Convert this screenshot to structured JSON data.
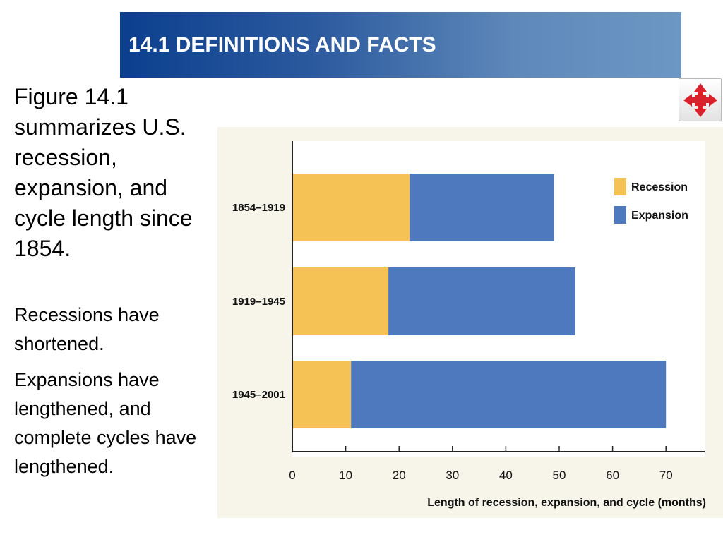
{
  "header": {
    "title": "14.1 DEFINITIONS AND FACTS"
  },
  "nav": {
    "icon": "move-arrows-icon",
    "color": "#d9212c"
  },
  "text": {
    "main": "Figure 14.1 summarizes U.S. recession, expansion, and cycle length since 1854.",
    "point1": "Recessions have shortened.",
    "point2": "Expansions have lengthened, and complete cycles have lengthened."
  },
  "chart_data": {
    "type": "bar",
    "orientation": "horizontal",
    "stacked": true,
    "categories": [
      "1854–1919",
      "1919–1945",
      "1945–2001"
    ],
    "series": [
      {
        "name": "Recession",
        "values": [
          22,
          18,
          11
        ],
        "color": "#f5c256"
      },
      {
        "name": "Expansion",
        "values": [
          27,
          35,
          59
        ],
        "color": "#4e79be"
      }
    ],
    "xlabel": "Length of recession, expansion, and cycle (months)",
    "xlim": [
      0,
      75
    ],
    "xticks": [
      0,
      10,
      20,
      30,
      40,
      50,
      60,
      70
    ],
    "legend": "top-right",
    "grid": false
  }
}
